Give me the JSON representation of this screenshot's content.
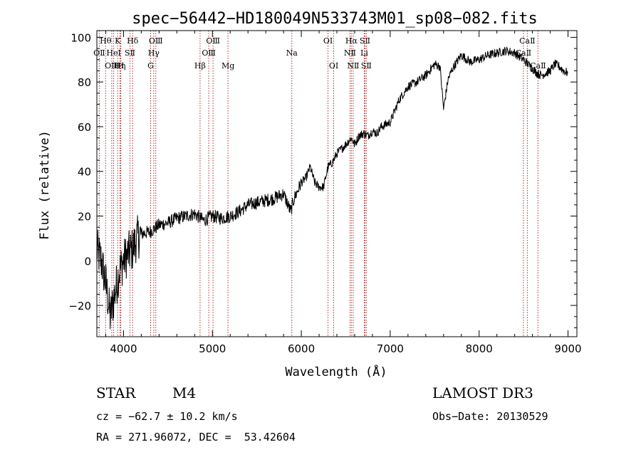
{
  "chart_data": {
    "type": "line",
    "title": "spec−56442−HD180049N533743M01_sp08−082.fits",
    "xlabel": "Wavelength (Å)",
    "ylabel": "Flux (relative)",
    "xlim": [
      3700,
      9100
    ],
    "ylim": [
      -34,
      103
    ],
    "x_ticks": [
      4000,
      5000,
      6000,
      7000,
      8000,
      9000
    ],
    "y_ticks": [
      -20,
      0,
      20,
      40,
      60,
      80,
      100
    ],
    "y_tick_labels": [
      "−20",
      "0",
      "20",
      "40",
      "60",
      "80",
      "100"
    ],
    "series": [
      {
        "name": "spectrum",
        "x": [
          3700,
          3750,
          3800,
          3850,
          3900,
          3950,
          4000,
          4050,
          4100,
          4150,
          4200,
          4300,
          4400,
          4500,
          4600,
          4700,
          4800,
          4900,
          5000,
          5100,
          5200,
          5300,
          5400,
          5500,
          5600,
          5700,
          5800,
          5880,
          5920,
          6000,
          6050,
          6100,
          6150,
          6200,
          6250,
          6300,
          6350,
          6400,
          6500,
          6560,
          6600,
          6650,
          6700,
          6750,
          6800,
          6850,
          6900,
          7000,
          7100,
          7200,
          7300,
          7400,
          7500,
          7560,
          7600,
          7650,
          7700,
          7800,
          7900,
          8000,
          8100,
          8200,
          8300,
          8400,
          8500,
          8550,
          8600,
          8650,
          8700,
          8800,
          8850,
          8900,
          8950,
          9000
        ],
        "y": [
          5,
          0,
          -10,
          -25,
          -15,
          -5,
          0,
          3,
          5,
          10,
          12,
          13,
          16,
          17,
          19,
          20,
          21,
          18,
          20,
          19,
          20,
          22,
          25,
          26,
          27,
          28,
          30,
          22,
          28,
          35,
          37,
          42,
          35,
          33,
          33,
          42,
          44,
          48,
          52,
          55,
          52,
          56,
          57,
          56,
          58,
          57,
          60,
          62,
          72,
          78,
          80,
          83,
          88,
          87,
          68,
          81,
          86,
          92,
          89,
          90,
          92,
          93,
          94,
          93,
          90,
          88,
          86,
          84,
          83,
          85,
          88,
          87,
          85,
          84
        ]
      }
    ],
    "line_markers": [
      {
        "label": "OⅡ",
        "x": 3727,
        "row": 2
      },
      {
        "label": "Hθ",
        "x": 3798,
        "row": 1
      },
      {
        "label": "OⅢ",
        "x": 3868,
        "row": 3
      },
      {
        "label": "HeⅠ",
        "x": 3889,
        "row": 2
      },
      {
        "label": "K",
        "x": 3934,
        "row": 1
      },
      {
        "label": "Hη",
        "x": 3960,
        "row": 3
      },
      {
        "label": "H",
        "x": 3969,
        "row": 3
      },
      {
        "label": "SⅡ",
        "x": 4072,
        "row": 2
      },
      {
        "label": "Hδ",
        "x": 4102,
        "row": 1
      },
      {
        "label": "G",
        "x": 4305,
        "row": 3
      },
      {
        "label": "Hγ",
        "x": 4340,
        "row": 2
      },
      {
        "label": "OⅢ",
        "x": 4363,
        "row": 1
      },
      {
        "label": "Hβ",
        "x": 4861,
        "row": 3
      },
      {
        "label": "OⅢ",
        "x": 4959,
        "row": 2
      },
      {
        "label": "OⅢ",
        "x": 5007,
        "row": 1
      },
      {
        "label": "Mg",
        "x": 5175,
        "row": 3
      },
      {
        "label": "Na",
        "x": 5893,
        "row": 2
      },
      {
        "label": "OⅠ",
        "x": 6300,
        "row": 1
      },
      {
        "label": "OⅠ",
        "x": 6364,
        "row": 3
      },
      {
        "label": "NⅡ",
        "x": 6548,
        "row": 2
      },
      {
        "label": "Hα",
        "x": 6563,
        "row": 1
      },
      {
        "label": "NⅡ",
        "x": 6583,
        "row": 3
      },
      {
        "label": "Li",
        "x": 6708,
        "row": 2
      },
      {
        "label": "SⅡ",
        "x": 6716,
        "row": 1
      },
      {
        "label": "SⅡ",
        "x": 6731,
        "row": 3
      },
      {
        "label": "CaⅡ",
        "x": 8498,
        "row": 2
      },
      {
        "label": "CaⅡ",
        "x": 8542,
        "row": 1
      },
      {
        "label": "CaⅡ",
        "x": 8662,
        "row": 3
      }
    ]
  },
  "info": {
    "object_class": "STAR",
    "subclass": "M4",
    "survey": "LAMOST DR3",
    "cz": "cz = −62.7 ± 10.2 km/s",
    "obs_date": "Obs−Date: 20130529",
    "coords": "RA = 271.96072, DEC =  53.42604"
  },
  "colors": {
    "line_color": "#000000",
    "marker_color": "#b02a2a",
    "background": "#ffffff"
  }
}
